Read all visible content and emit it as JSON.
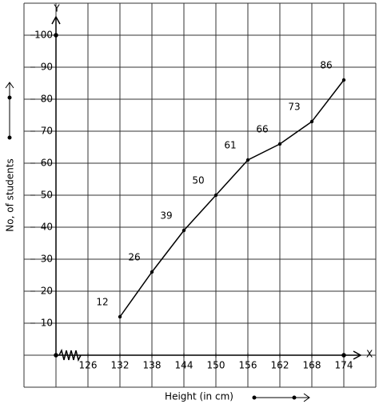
{
  "chart_data": {
    "type": "line",
    "x_label": "Height (in cm)",
    "y_label": "No, of students",
    "x_axis_name": "X",
    "y_axis_name": "Y",
    "x": [
      132,
      138,
      144,
      150,
      156,
      162,
      168,
      174
    ],
    "series": [
      {
        "color": "#000000",
        "values": [
          12,
          26,
          39,
          50,
          61,
          66,
          73,
          86
        ]
      }
    ],
    "xlim": [
      114,
      180
    ],
    "ylim": [
      -10,
      110
    ],
    "xticks": [
      126,
      132,
      138,
      144,
      150,
      156,
      162,
      168,
      174
    ],
    "yticks": [
      10,
      20,
      30,
      40,
      50,
      60,
      70,
      80,
      90,
      100
    ],
    "grid": true,
    "data_labels": true
  }
}
